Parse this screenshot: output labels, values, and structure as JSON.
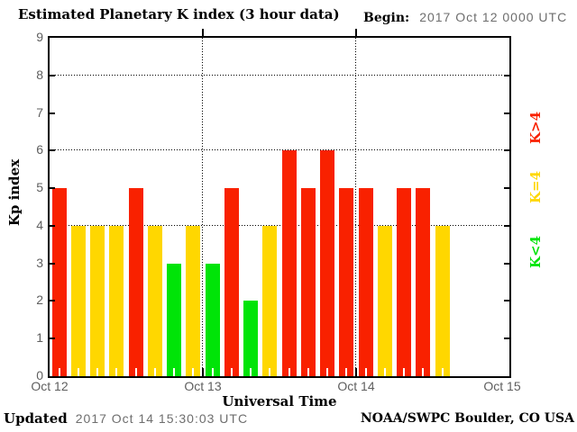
{
  "header": {
    "title": "Estimated Planetary K index (3 hour data)",
    "begin_label": "Begin:",
    "begin_value": "2017 Oct 12 0000 UTC"
  },
  "chart_data": {
    "type": "bar",
    "title": "Estimated Planetary K index (3 hour data)",
    "xlabel": "Universal Time",
    "ylabel": "Kp index",
    "ylim": [
      0,
      9
    ],
    "y_ticks": [
      0,
      1,
      2,
      3,
      4,
      5,
      6,
      7,
      8,
      9
    ],
    "x_tick_labels": [
      "Oct 12",
      "Oct 13",
      "Oct 14",
      "Oct 15"
    ],
    "dotted_gridlines_y": [
      4,
      6,
      8
    ],
    "grid": "dotted horizontal lines at Kp 4/6/8, dotted vertical lines at day boundaries",
    "begin_time": "2017 Oct 12 0000 UTC",
    "bar_interval_hours": 3,
    "bars_per_day": 8,
    "days_shown": 3,
    "values": [
      5,
      4,
      4,
      4,
      5,
      4,
      3,
      4,
      3,
      5,
      2,
      4,
      6,
      5,
      6,
      5,
      5,
      4,
      5,
      5,
      4
    ],
    "colors": {
      "above_4": "#f92100",
      "equal_4": "#ffd700",
      "below_4": "#00e408"
    },
    "legend_position": "right",
    "legend": [
      {
        "label": "K>4",
        "color": "#f92100"
      },
      {
        "label": "K=4",
        "color": "#ffd700"
      },
      {
        "label": "K<4",
        "color": "#00e408"
      }
    ]
  },
  "footer": {
    "updated_label": "Updated",
    "updated_value": "2017 Oct 14 15:30:03 UTC",
    "source": "NOAA/SWPC Boulder, CO USA"
  }
}
